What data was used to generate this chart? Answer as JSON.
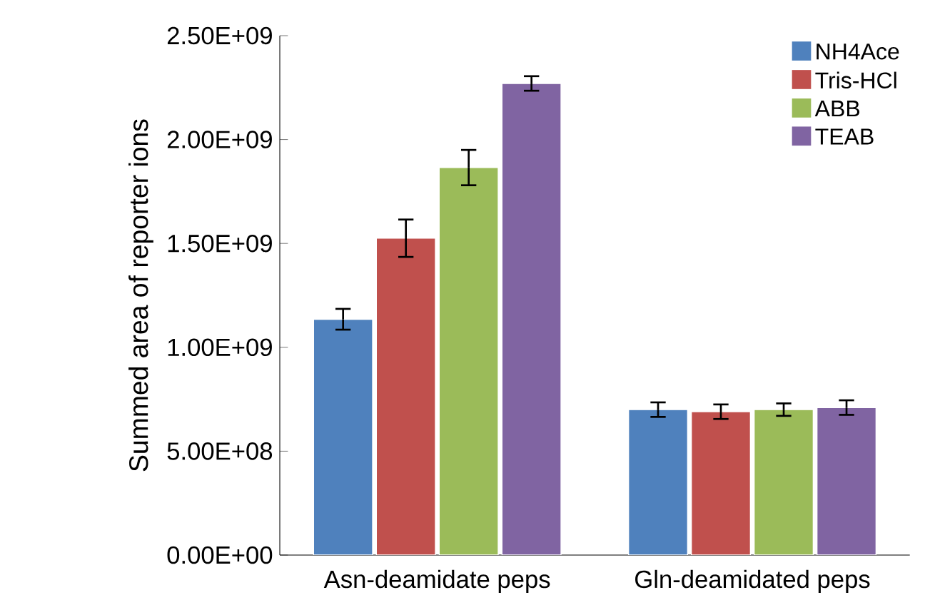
{
  "chart_data": {
    "type": "bar",
    "ylabel": "Summed area of reporter ions",
    "categories": [
      "Asn-deamidate peps",
      "Gln-deamidated peps"
    ],
    "series": [
      {
        "name": "NH4Ace",
        "color": "#4f81bd",
        "values": [
          1135000000.0,
          700000000.0
        ],
        "errors": [
          50000000.0,
          35000000.0
        ]
      },
      {
        "name": "Tris-HCl",
        "color": "#c0504d",
        "values": [
          1525000000.0,
          690000000.0
        ],
        "errors": [
          90000000.0,
          35000000.0
        ]
      },
      {
        "name": "ABB",
        "color": "#9bbb59",
        "values": [
          1865000000.0,
          700000000.0
        ],
        "errors": [
          85000000.0,
          30000000.0
        ]
      },
      {
        "name": "TEAB",
        "color": "#8064a2",
        "values": [
          2270000000.0,
          710000000.0
        ],
        "errors": [
          35000000.0,
          35000000.0
        ]
      }
    ],
    "ylim": [
      0,
      2500000000.0
    ],
    "yticks": [
      {
        "value": 0,
        "label": "0.00E+00"
      },
      {
        "value": 500000000.0,
        "label": "5.00E+08"
      },
      {
        "value": 1000000000.0,
        "label": "1.00E+09"
      },
      {
        "value": 1500000000.0,
        "label": "1.50E+09"
      },
      {
        "value": 2000000000.0,
        "label": "2.00E+09"
      },
      {
        "value": 2500000000.0,
        "label": "2.50E+09"
      }
    ],
    "grid": false,
    "legend": "top right"
  }
}
